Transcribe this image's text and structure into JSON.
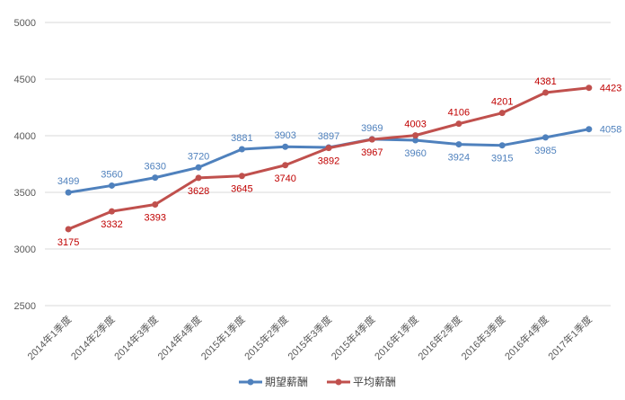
{
  "chart_data": {
    "type": "line",
    "title": "",
    "xlabel": "",
    "ylabel": "",
    "ylim": [
      2500,
      5000
    ],
    "yticks": [
      2500,
      3000,
      3500,
      4000,
      4500,
      5000
    ],
    "grid": true,
    "legend_position": "bottom",
    "categories": [
      "2014年1季度",
      "2014年2季度",
      "2014年3季度",
      "2014年4季度",
      "2015年1季度",
      "2015年2季度",
      "2015年3季度",
      "2015年4季度",
      "2016年1季度",
      "2016年2季度",
      "2016年3季度",
      "2016年4季度",
      "2017年1季度"
    ],
    "series": [
      {
        "name": "期望薪酬",
        "color": "#4F81BD",
        "label_color": "#4F81BD",
        "values": [
          3499,
          3560,
          3630,
          3720,
          3881,
          3903,
          3897,
          3969,
          3960,
          3924,
          3915,
          3985,
          4058
        ]
      },
      {
        "name": "平均薪酬",
        "color": "#C0504D",
        "label_color": "#C00000",
        "values": [
          3175,
          3332,
          3393,
          3628,
          3645,
          3740,
          3892,
          3967,
          4003,
          4106,
          4201,
          4381,
          4423
        ]
      }
    ]
  }
}
